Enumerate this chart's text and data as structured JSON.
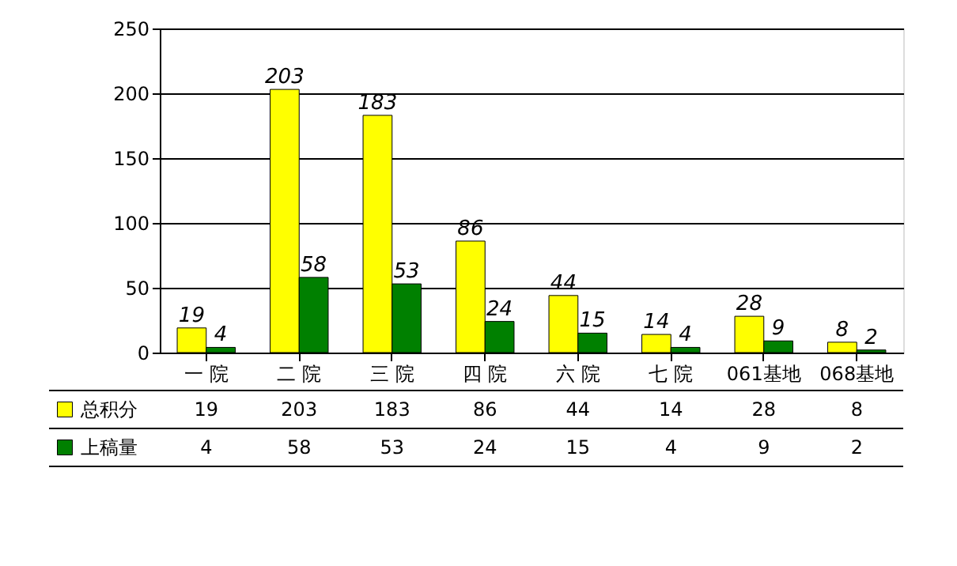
{
  "chart_data": {
    "type": "bar",
    "categories": [
      "一 院",
      "二 院",
      "三 院",
      "四 院",
      "六 院",
      "七 院",
      "061基地",
      "068基地"
    ],
    "series": [
      {
        "name": "总积分",
        "color": "#ffff00",
        "values": [
          19,
          203,
          183,
          86,
          44,
          14,
          28,
          8
        ]
      },
      {
        "name": "上稿量",
        "color": "#008000",
        "values": [
          4,
          58,
          53,
          24,
          15,
          4,
          9,
          2
        ]
      }
    ],
    "annotations": [
      "19",
      "203",
      "183",
      "86",
      "44",
      "14",
      "28",
      "8",
      "4",
      "58",
      "53",
      "24",
      "15",
      "4",
      "9",
      "2"
    ],
    "ylim": [
      0,
      250
    ],
    "yticks": [
      0,
      50,
      100,
      150,
      200,
      250
    ],
    "grid": "y",
    "legend": "bottom",
    "data_labels": true
  }
}
